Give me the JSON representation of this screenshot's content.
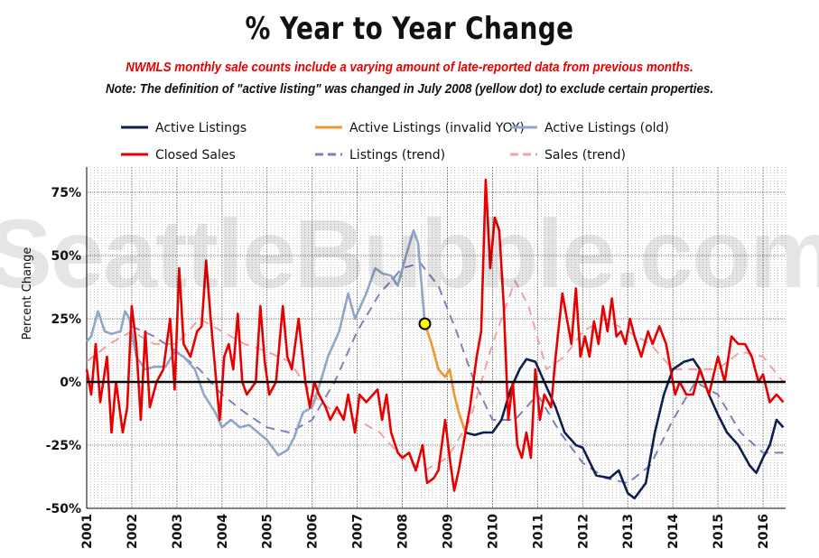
{
  "title": "% Year to Year Change",
  "notes": {
    "red": "NWMLS monthly sale counts include a varying amount of late-reported  data from previous months.",
    "black": "Note: The definition of \"active listing\" was changed in July 2008 (yellow dot) to exclude certain properties."
  },
  "watermark": "SeattleBubble.com",
  "colors": {
    "active_listings": "#0d1f4f",
    "active_listings_invalid": "#f0962e",
    "active_listings_old": "#8fa6c6",
    "closed_sales": "#e60000",
    "listings_trend": "#8080b8",
    "sales_trend": "#f5a0a0",
    "yellow_dot": "#ffff00"
  },
  "chart_data": {
    "type": "line",
    "ylabel": "Percent Change",
    "ylim": [
      -50,
      85
    ],
    "yticks": [
      -50,
      -25,
      0,
      25,
      50,
      75
    ],
    "ytick_labels": [
      "-50%",
      "-25%",
      "0%",
      "25%",
      "50%",
      "75%"
    ],
    "x_range": [
      2001.0,
      2016.5
    ],
    "xticks": [
      2001,
      2002,
      2003,
      2004,
      2005,
      2006,
      2007,
      2008,
      2009,
      2010,
      2011,
      2012,
      2013,
      2014,
      2015,
      2016
    ],
    "xtick_labels": [
      "2001",
      "2002",
      "2003",
      "2004",
      "2005",
      "2006",
      "2007",
      "2008",
      "2009",
      "2010",
      "2011",
      "2012",
      "2013",
      "2014",
      "2015",
      "2016"
    ],
    "grid": true,
    "legend": "top",
    "marker": {
      "x": 2008.5,
      "y": 23,
      "label": "July 2008"
    },
    "series": [
      {
        "name": "Active Listings",
        "key": "active_listings",
        "style": "solid",
        "points": [
          [
            2009.4,
            -20
          ],
          [
            2009.6,
            -21
          ],
          [
            2009.8,
            -20
          ],
          [
            2010.0,
            -20
          ],
          [
            2010.2,
            -15
          ],
          [
            2010.4,
            -3
          ],
          [
            2010.6,
            5
          ],
          [
            2010.75,
            9
          ],
          [
            2010.95,
            8
          ],
          [
            2011.15,
            0
          ],
          [
            2011.4,
            -10
          ],
          [
            2011.6,
            -20
          ],
          [
            2011.85,
            -25
          ],
          [
            2012.0,
            -26
          ],
          [
            2012.3,
            -37
          ],
          [
            2012.6,
            -38
          ],
          [
            2012.8,
            -35
          ],
          [
            2013.0,
            -44
          ],
          [
            2013.15,
            -46
          ],
          [
            2013.4,
            -40
          ],
          [
            2013.6,
            -20
          ],
          [
            2013.8,
            -5
          ],
          [
            2014.0,
            5
          ],
          [
            2014.25,
            8
          ],
          [
            2014.45,
            9
          ],
          [
            2014.6,
            5
          ],
          [
            2014.8,
            -5
          ],
          [
            2015.0,
            -13
          ],
          [
            2015.2,
            -20
          ],
          [
            2015.45,
            -25
          ],
          [
            2015.7,
            -33
          ],
          [
            2015.85,
            -36
          ],
          [
            2016.0,
            -30
          ],
          [
            2016.15,
            -25
          ],
          [
            2016.3,
            -15
          ],
          [
            2016.45,
            -18
          ]
        ]
      },
      {
        "name": "Active Listings (invalid YOY)",
        "key": "active_listings_invalid",
        "style": "solid",
        "points": [
          [
            2008.5,
            23
          ],
          [
            2008.65,
            15
          ],
          [
            2008.8,
            5
          ],
          [
            2008.95,
            2
          ],
          [
            2009.05,
            5
          ],
          [
            2009.15,
            -5
          ],
          [
            2009.25,
            -12
          ],
          [
            2009.4,
            -20
          ]
        ]
      },
      {
        "name": "Active Listings (old)",
        "key": "active_listings_old",
        "style": "solid",
        "points": [
          [
            2001.0,
            16
          ],
          [
            2001.1,
            18
          ],
          [
            2001.25,
            28
          ],
          [
            2001.4,
            20
          ],
          [
            2001.55,
            19
          ],
          [
            2001.75,
            20
          ],
          [
            2001.85,
            28
          ],
          [
            2001.95,
            25
          ],
          [
            2002.1,
            10
          ],
          [
            2002.3,
            5
          ],
          [
            2002.5,
            6
          ],
          [
            2002.75,
            6
          ],
          [
            2002.95,
            12
          ],
          [
            2003.15,
            10
          ],
          [
            2003.4,
            5
          ],
          [
            2003.6,
            -5
          ],
          [
            2003.85,
            -12
          ],
          [
            2004.0,
            -18
          ],
          [
            2004.2,
            -15
          ],
          [
            2004.4,
            -18
          ],
          [
            2004.6,
            -17
          ],
          [
            2004.8,
            -20
          ],
          [
            2005.0,
            -23
          ],
          [
            2005.25,
            -29
          ],
          [
            2005.45,
            -27
          ],
          [
            2005.6,
            -22
          ],
          [
            2005.8,
            -12
          ],
          [
            2006.0,
            -10
          ],
          [
            2006.15,
            -2
          ],
          [
            2006.35,
            10
          ],
          [
            2006.6,
            20
          ],
          [
            2006.8,
            35
          ],
          [
            2006.95,
            25
          ],
          [
            2007.2,
            35
          ],
          [
            2007.4,
            45
          ],
          [
            2007.55,
            43
          ],
          [
            2007.75,
            42
          ],
          [
            2007.9,
            38
          ],
          [
            2008.05,
            48
          ],
          [
            2008.25,
            60
          ],
          [
            2008.35,
            55
          ],
          [
            2008.5,
            23
          ]
        ]
      },
      {
        "name": "Closed Sales",
        "key": "closed_sales",
        "style": "solid",
        "points": [
          [
            2001.0,
            5
          ],
          [
            2001.1,
            -5
          ],
          [
            2001.2,
            15
          ],
          [
            2001.3,
            -8
          ],
          [
            2001.45,
            10
          ],
          [
            2001.55,
            -20
          ],
          [
            2001.65,
            0
          ],
          [
            2001.8,
            -20
          ],
          [
            2001.9,
            -10
          ],
          [
            2002.0,
            30
          ],
          [
            2002.1,
            15
          ],
          [
            2002.2,
            -15
          ],
          [
            2002.3,
            20
          ],
          [
            2002.4,
            -10
          ],
          [
            2002.55,
            0
          ],
          [
            2002.7,
            5
          ],
          [
            2002.85,
            25
          ],
          [
            2002.95,
            -3
          ],
          [
            2003.05,
            45
          ],
          [
            2003.15,
            15
          ],
          [
            2003.3,
            10
          ],
          [
            2003.45,
            20
          ],
          [
            2003.55,
            22
          ],
          [
            2003.65,
            48
          ],
          [
            2003.75,
            25
          ],
          [
            2003.85,
            5
          ],
          [
            2003.95,
            -15
          ],
          [
            2004.05,
            10
          ],
          [
            2004.15,
            15
          ],
          [
            2004.25,
            5
          ],
          [
            2004.35,
            27
          ],
          [
            2004.45,
            0
          ],
          [
            2004.55,
            -5
          ],
          [
            2004.75,
            0
          ],
          [
            2004.85,
            30
          ],
          [
            2004.95,
            8
          ],
          [
            2005.05,
            -5
          ],
          [
            2005.2,
            0
          ],
          [
            2005.35,
            30
          ],
          [
            2005.45,
            10
          ],
          [
            2005.55,
            5
          ],
          [
            2005.7,
            25
          ],
          [
            2005.85,
            0
          ],
          [
            2005.95,
            -10
          ],
          [
            2006.05,
            0
          ],
          [
            2006.15,
            -5
          ],
          [
            2006.3,
            -10
          ],
          [
            2006.4,
            -15
          ],
          [
            2006.55,
            -10
          ],
          [
            2006.7,
            -15
          ],
          [
            2006.8,
            -5
          ],
          [
            2006.95,
            -20
          ],
          [
            2007.05,
            -5
          ],
          [
            2007.2,
            -8
          ],
          [
            2007.35,
            -5
          ],
          [
            2007.45,
            -3
          ],
          [
            2007.55,
            -15
          ],
          [
            2007.65,
            -5
          ],
          [
            2007.75,
            -20
          ],
          [
            2007.9,
            -28
          ],
          [
            2008.0,
            -30
          ],
          [
            2008.15,
            -28
          ],
          [
            2008.3,
            -35
          ],
          [
            2008.45,
            -25
          ],
          [
            2008.55,
            -40
          ],
          [
            2008.7,
            -38
          ],
          [
            2008.8,
            -35
          ],
          [
            2008.95,
            -15
          ],
          [
            2009.05,
            -30
          ],
          [
            2009.15,
            -43
          ],
          [
            2009.25,
            -35
          ],
          [
            2009.35,
            -25
          ],
          [
            2009.5,
            -10
          ],
          [
            2009.65,
            10
          ],
          [
            2009.75,
            20
          ],
          [
            2009.85,
            80
          ],
          [
            2009.95,
            45
          ],
          [
            2010.05,
            65
          ],
          [
            2010.15,
            60
          ],
          [
            2010.25,
            30
          ],
          [
            2010.35,
            -15
          ],
          [
            2010.45,
            0
          ],
          [
            2010.55,
            -25
          ],
          [
            2010.65,
            -30
          ],
          [
            2010.75,
            -20
          ],
          [
            2010.85,
            -30
          ],
          [
            2010.95,
            5
          ],
          [
            2011.05,
            -15
          ],
          [
            2011.15,
            -5
          ],
          [
            2011.3,
            -10
          ],
          [
            2011.4,
            10
          ],
          [
            2011.55,
            35
          ],
          [
            2011.65,
            25
          ],
          [
            2011.75,
            15
          ],
          [
            2011.85,
            37
          ],
          [
            2011.95,
            10
          ],
          [
            2012.05,
            18
          ],
          [
            2012.15,
            10
          ],
          [
            2012.25,
            24
          ],
          [
            2012.35,
            15
          ],
          [
            2012.45,
            30
          ],
          [
            2012.55,
            20
          ],
          [
            2012.65,
            33
          ],
          [
            2012.75,
            18
          ],
          [
            2012.85,
            20
          ],
          [
            2012.95,
            15
          ],
          [
            2013.05,
            25
          ],
          [
            2013.15,
            18
          ],
          [
            2013.3,
            10
          ],
          [
            2013.45,
            20
          ],
          [
            2013.55,
            15
          ],
          [
            2013.7,
            22
          ],
          [
            2013.85,
            15
          ],
          [
            2014.05,
            -5
          ],
          [
            2014.15,
            0
          ],
          [
            2014.3,
            -5
          ],
          [
            2014.45,
            -5
          ],
          [
            2014.6,
            5
          ],
          [
            2014.8,
            -5
          ],
          [
            2015.0,
            10
          ],
          [
            2015.15,
            0
          ],
          [
            2015.3,
            18
          ],
          [
            2015.45,
            15
          ],
          [
            2015.6,
            15
          ],
          [
            2015.75,
            10
          ],
          [
            2015.9,
            0
          ],
          [
            2016.0,
            3
          ],
          [
            2016.15,
            -8
          ],
          [
            2016.3,
            -5
          ],
          [
            2016.45,
            -8
          ]
        ]
      },
      {
        "name": "Listings (trend)",
        "key": "listings_trend",
        "style": "dashed",
        "points": [
          [
            2002.0,
            22
          ],
          [
            2002.5,
            18
          ],
          [
            2003.0,
            12
          ],
          [
            2003.5,
            5
          ],
          [
            2004.0,
            -5
          ],
          [
            2004.5,
            -12
          ],
          [
            2005.0,
            -18
          ],
          [
            2005.5,
            -20
          ],
          [
            2006.0,
            -15
          ],
          [
            2006.5,
            0
          ],
          [
            2007.0,
            20
          ],
          [
            2007.5,
            35
          ],
          [
            2008.0,
            45
          ],
          [
            2008.4,
            47
          ],
          [
            2008.8,
            38
          ],
          [
            2009.2,
            20
          ],
          [
            2009.6,
            0
          ],
          [
            2010.0,
            -15
          ],
          [
            2010.5,
            -15
          ],
          [
            2011.0,
            -5
          ],
          [
            2011.5,
            -20
          ],
          [
            2012.0,
            -32
          ],
          [
            2012.5,
            -38
          ],
          [
            2013.0,
            -40
          ],
          [
            2013.5,
            -33
          ],
          [
            2014.0,
            -15
          ],
          [
            2014.5,
            0
          ],
          [
            2015.0,
            -5
          ],
          [
            2015.5,
            -20
          ],
          [
            2016.0,
            -28
          ],
          [
            2016.45,
            -28
          ]
        ]
      },
      {
        "name": "Sales (trend)",
        "key": "sales_trend",
        "style": "dashed",
        "points": [
          [
            2001.0,
            8
          ],
          [
            2001.5,
            15
          ],
          [
            2002.0,
            20
          ],
          [
            2002.5,
            15
          ],
          [
            2003.0,
            15
          ],
          [
            2003.5,
            25
          ],
          [
            2004.0,
            20
          ],
          [
            2004.5,
            15
          ],
          [
            2005.0,
            12
          ],
          [
            2005.5,
            8
          ],
          [
            2006.0,
            -5
          ],
          [
            2006.5,
            -12
          ],
          [
            2007.0,
            -15
          ],
          [
            2007.5,
            -20
          ],
          [
            2008.0,
            -30
          ],
          [
            2008.5,
            -35
          ],
          [
            2009.0,
            -30
          ],
          [
            2009.5,
            -15
          ],
          [
            2010.0,
            15
          ],
          [
            2010.5,
            40
          ],
          [
            2010.8,
            30
          ],
          [
            2011.2,
            5
          ],
          [
            2011.6,
            10
          ],
          [
            2012.0,
            20
          ],
          [
            2012.5,
            25
          ],
          [
            2013.0,
            20
          ],
          [
            2013.5,
            15
          ],
          [
            2014.0,
            5
          ],
          [
            2014.5,
            5
          ],
          [
            2015.0,
            5
          ],
          [
            2015.5,
            12
          ],
          [
            2016.0,
            10
          ],
          [
            2016.45,
            0
          ]
        ]
      }
    ]
  }
}
